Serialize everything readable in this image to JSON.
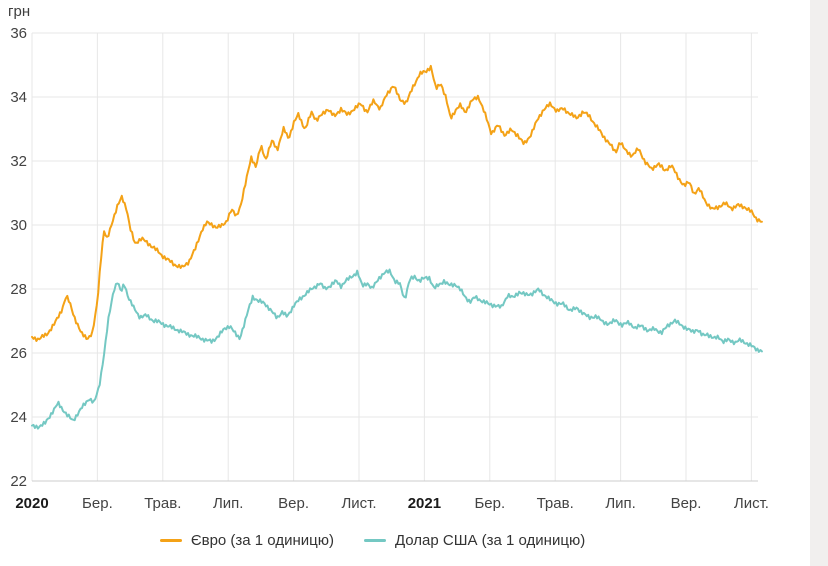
{
  "page": {
    "background": "#ffffff",
    "right_strip_color": "#f1efee"
  },
  "chart_data": {
    "type": "line",
    "title": "",
    "grid": true,
    "legend_position": "bottom",
    "y_axis": {
      "unit_label": "грн",
      "ticks": [
        36,
        34,
        32,
        30,
        28,
        26,
        24,
        22
      ],
      "ylim": [
        22,
        36
      ]
    },
    "x_axis": {
      "note_months_since_jan2020": true,
      "ticks": [
        {
          "label": "2020",
          "m": 0,
          "bold": true
        },
        {
          "label": "Бер.",
          "m": 2,
          "bold": false
        },
        {
          "label": "Трав.",
          "m": 4,
          "bold": false
        },
        {
          "label": "Лип.",
          "m": 6,
          "bold": false
        },
        {
          "label": "Вер.",
          "m": 8,
          "bold": false
        },
        {
          "label": "Лист.",
          "m": 10,
          "bold": false
        },
        {
          "label": "2021",
          "m": 12,
          "bold": true
        },
        {
          "label": "Бер.",
          "m": 14,
          "bold": false
        },
        {
          "label": "Трав.",
          "m": 16,
          "bold": false
        },
        {
          "label": "Лип.",
          "m": 18,
          "bold": false
        },
        {
          "label": "Вер.",
          "m": 20,
          "bold": false
        },
        {
          "label": "Лист.",
          "m": 22,
          "bold": false
        }
      ],
      "xlim": [
        0,
        22.32
      ]
    },
    "series": [
      {
        "id": "euro",
        "name": "Євро (за 1 одиницю)",
        "color": "#F4A217",
        "points": [
          [
            0,
            26.45
          ],
          [
            0.2,
            26.4
          ],
          [
            0.45,
            26.55
          ],
          [
            0.7,
            26.9
          ],
          [
            0.9,
            27.3
          ],
          [
            1.05,
            27.75
          ],
          [
            1.15,
            27.55
          ],
          [
            1.3,
            27.1
          ],
          [
            1.5,
            26.6
          ],
          [
            1.7,
            26.45
          ],
          [
            1.85,
            26.6
          ],
          [
            2.0,
            27.6
          ],
          [
            2.1,
            28.9
          ],
          [
            2.2,
            29.8
          ],
          [
            2.3,
            29.55
          ],
          [
            2.45,
            30.1
          ],
          [
            2.6,
            30.55
          ],
          [
            2.75,
            30.9
          ],
          [
            2.9,
            30.5
          ],
          [
            3.0,
            29.9
          ],
          [
            3.15,
            29.45
          ],
          [
            3.35,
            29.6
          ],
          [
            3.55,
            29.45
          ],
          [
            3.75,
            29.3
          ],
          [
            3.95,
            29.1
          ],
          [
            4.15,
            28.95
          ],
          [
            4.35,
            28.8
          ],
          [
            4.6,
            28.7
          ],
          [
            4.8,
            28.9
          ],
          [
            5.0,
            29.3
          ],
          [
            5.2,
            29.9
          ],
          [
            5.35,
            30.1
          ],
          [
            5.5,
            30.05
          ],
          [
            5.65,
            29.95
          ],
          [
            5.8,
            30.0
          ],
          [
            5.95,
            30.15
          ],
          [
            6.1,
            30.5
          ],
          [
            6.25,
            30.3
          ],
          [
            6.4,
            30.7
          ],
          [
            6.55,
            31.4
          ],
          [
            6.7,
            32.15
          ],
          [
            6.85,
            31.8
          ],
          [
            7.0,
            32.5
          ],
          [
            7.15,
            32.05
          ],
          [
            7.35,
            32.65
          ],
          [
            7.5,
            32.35
          ],
          [
            7.7,
            33.0
          ],
          [
            7.85,
            32.7
          ],
          [
            8.0,
            33.15
          ],
          [
            8.15,
            33.45
          ],
          [
            8.35,
            32.95
          ],
          [
            8.55,
            33.5
          ],
          [
            8.7,
            33.25
          ],
          [
            8.9,
            33.45
          ],
          [
            9.05,
            33.6
          ],
          [
            9.25,
            33.35
          ],
          [
            9.45,
            33.6
          ],
          [
            9.65,
            33.4
          ],
          [
            9.85,
            33.6
          ],
          [
            10.05,
            33.75
          ],
          [
            10.25,
            33.5
          ],
          [
            10.45,
            33.85
          ],
          [
            10.65,
            33.6
          ],
          [
            10.85,
            34.05
          ],
          [
            11.05,
            34.35
          ],
          [
            11.25,
            33.9
          ],
          [
            11.45,
            33.8
          ],
          [
            11.65,
            34.3
          ],
          [
            11.85,
            34.7
          ],
          [
            12.05,
            34.8
          ],
          [
            12.2,
            34.95
          ],
          [
            12.35,
            34.25
          ],
          [
            12.5,
            34.45
          ],
          [
            12.65,
            34.0
          ],
          [
            12.8,
            33.35
          ],
          [
            12.95,
            33.6
          ],
          [
            13.1,
            33.75
          ],
          [
            13.25,
            33.55
          ],
          [
            13.45,
            33.9
          ],
          [
            13.65,
            34.05
          ],
          [
            13.85,
            33.5
          ],
          [
            14.05,
            32.9
          ],
          [
            14.25,
            33.15
          ],
          [
            14.45,
            32.85
          ],
          [
            14.65,
            33.0
          ],
          [
            14.85,
            32.85
          ],
          [
            15.05,
            32.55
          ],
          [
            15.25,
            32.85
          ],
          [
            15.45,
            33.3
          ],
          [
            15.65,
            33.65
          ],
          [
            15.85,
            33.8
          ],
          [
            16.05,
            33.6
          ],
          [
            16.25,
            33.65
          ],
          [
            16.45,
            33.5
          ],
          [
            16.65,
            33.35
          ],
          [
            16.85,
            33.55
          ],
          [
            17.05,
            33.4
          ],
          [
            17.25,
            33.1
          ],
          [
            17.45,
            32.8
          ],
          [
            17.65,
            32.55
          ],
          [
            17.85,
            32.25
          ],
          [
            17.98,
            32.6
          ],
          [
            18.15,
            32.3
          ],
          [
            18.35,
            32.15
          ],
          [
            18.55,
            32.35
          ],
          [
            18.75,
            31.95
          ],
          [
            18.95,
            31.7
          ],
          [
            19.15,
            31.9
          ],
          [
            19.35,
            31.65
          ],
          [
            19.55,
            31.85
          ],
          [
            19.75,
            31.45
          ],
          [
            19.95,
            31.2
          ],
          [
            20.1,
            31.3
          ],
          [
            20.25,
            30.95
          ],
          [
            20.4,
            31.1
          ],
          [
            20.6,
            30.7
          ],
          [
            20.8,
            30.45
          ],
          [
            21.0,
            30.55
          ],
          [
            21.2,
            30.65
          ],
          [
            21.4,
            30.5
          ],
          [
            21.6,
            30.6
          ],
          [
            21.8,
            30.55
          ],
          [
            22.0,
            30.4
          ],
          [
            22.15,
            30.2
          ],
          [
            22.32,
            30.1
          ]
        ]
      },
      {
        "id": "usd",
        "name": "Долар США (за 1 одиницю)",
        "color": "#74C8C3",
        "points": [
          [
            0,
            23.7
          ],
          [
            0.2,
            23.68
          ],
          [
            0.4,
            23.78
          ],
          [
            0.6,
            24.1
          ],
          [
            0.8,
            24.4
          ],
          [
            0.95,
            24.2
          ],
          [
            1.1,
            24.0
          ],
          [
            1.25,
            23.85
          ],
          [
            1.45,
            24.15
          ],
          [
            1.6,
            24.35
          ],
          [
            1.75,
            24.55
          ],
          [
            1.9,
            24.4
          ],
          [
            2.05,
            24.9
          ],
          [
            2.2,
            25.9
          ],
          [
            2.35,
            27.1
          ],
          [
            2.5,
            27.95
          ],
          [
            2.62,
            28.2
          ],
          [
            2.72,
            27.85
          ],
          [
            2.82,
            28.15
          ],
          [
            2.95,
            27.7
          ],
          [
            3.1,
            27.4
          ],
          [
            3.3,
            27.1
          ],
          [
            3.5,
            27.15
          ],
          [
            3.7,
            27.0
          ],
          [
            3.9,
            26.95
          ],
          [
            4.1,
            26.85
          ],
          [
            4.3,
            26.78
          ],
          [
            4.5,
            26.7
          ],
          [
            4.7,
            26.62
          ],
          [
            4.9,
            26.55
          ],
          [
            5.1,
            26.5
          ],
          [
            5.3,
            26.42
          ],
          [
            5.5,
            26.38
          ],
          [
            5.7,
            26.55
          ],
          [
            5.9,
            26.8
          ],
          [
            6.05,
            26.88
          ],
          [
            6.2,
            26.65
          ],
          [
            6.35,
            26.5
          ],
          [
            6.5,
            26.95
          ],
          [
            6.65,
            27.5
          ],
          [
            6.75,
            27.8
          ],
          [
            6.9,
            27.65
          ],
          [
            7.1,
            27.62
          ],
          [
            7.3,
            27.35
          ],
          [
            7.5,
            27.15
          ],
          [
            7.65,
            27.3
          ],
          [
            7.8,
            27.17
          ],
          [
            8.0,
            27.5
          ],
          [
            8.2,
            27.72
          ],
          [
            8.4,
            27.9
          ],
          [
            8.6,
            28.05
          ],
          [
            8.8,
            28.2
          ],
          [
            8.95,
            28.02
          ],
          [
            9.1,
            28.1
          ],
          [
            9.3,
            28.25
          ],
          [
            9.45,
            28.1
          ],
          [
            9.6,
            28.25
          ],
          [
            9.8,
            28.4
          ],
          [
            9.95,
            28.52
          ],
          [
            10.1,
            28.08
          ],
          [
            10.25,
            28.18
          ],
          [
            10.4,
            27.98
          ],
          [
            10.6,
            28.32
          ],
          [
            10.8,
            28.48
          ],
          [
            10.95,
            28.55
          ],
          [
            11.1,
            28.2
          ],
          [
            11.25,
            28.12
          ],
          [
            11.4,
            27.65
          ],
          [
            11.55,
            28.25
          ],
          [
            11.7,
            28.35
          ],
          [
            11.85,
            28.22
          ],
          [
            12.0,
            28.3
          ],
          [
            12.15,
            28.32
          ],
          [
            12.3,
            27.98
          ],
          [
            12.45,
            28.1
          ],
          [
            12.6,
            28.22
          ],
          [
            12.75,
            28.08
          ],
          [
            12.95,
            28.12
          ],
          [
            13.1,
            27.95
          ],
          [
            13.25,
            27.72
          ],
          [
            13.4,
            27.58
          ],
          [
            13.55,
            27.72
          ],
          [
            13.75,
            27.62
          ],
          [
            13.95,
            27.52
          ],
          [
            14.15,
            27.48
          ],
          [
            14.35,
            27.42
          ],
          [
            14.55,
            27.82
          ],
          [
            14.7,
            27.72
          ],
          [
            14.9,
            27.92
          ],
          [
            15.1,
            27.82
          ],
          [
            15.3,
            27.88
          ],
          [
            15.5,
            28.0
          ],
          [
            15.65,
            27.85
          ],
          [
            15.85,
            27.68
          ],
          [
            16.05,
            27.58
          ],
          [
            16.25,
            27.55
          ],
          [
            16.45,
            27.38
          ],
          [
            16.65,
            27.42
          ],
          [
            16.85,
            27.3
          ],
          [
            17.05,
            27.12
          ],
          [
            17.25,
            27.2
          ],
          [
            17.45,
            27.0
          ],
          [
            17.65,
            26.95
          ],
          [
            17.85,
            27.05
          ],
          [
            18.05,
            26.9
          ],
          [
            18.25,
            26.98
          ],
          [
            18.45,
            26.8
          ],
          [
            18.65,
            26.88
          ],
          [
            18.85,
            26.7
          ],
          [
            19.05,
            26.78
          ],
          [
            19.25,
            26.62
          ],
          [
            19.45,
            26.88
          ],
          [
            19.65,
            27.0
          ],
          [
            19.85,
            26.88
          ],
          [
            20.05,
            26.72
          ],
          [
            20.2,
            26.66
          ],
          [
            20.35,
            26.72
          ],
          [
            20.5,
            26.52
          ],
          [
            20.65,
            26.58
          ],
          [
            20.85,
            26.42
          ],
          [
            21.0,
            26.48
          ],
          [
            21.15,
            26.32
          ],
          [
            21.3,
            26.38
          ],
          [
            21.5,
            26.3
          ],
          [
            21.65,
            26.36
          ],
          [
            21.8,
            26.3
          ],
          [
            21.95,
            26.22
          ],
          [
            22.15,
            26.08
          ],
          [
            22.32,
            26.05
          ]
        ]
      }
    ]
  }
}
